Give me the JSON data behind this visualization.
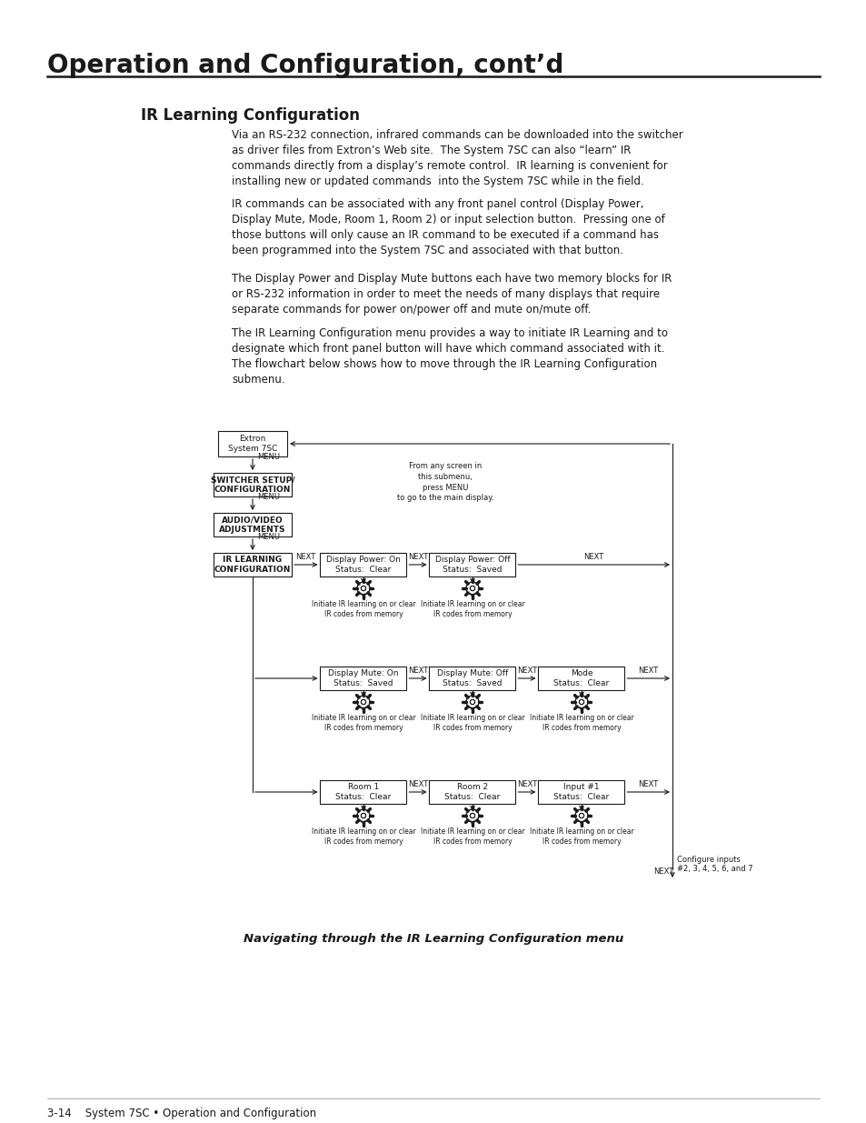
{
  "title": "Operation and Configuration, cont’d",
  "section_title": "IR Learning Configuration",
  "paragraph1": "Via an RS-232 connection, infrared commands can be downloaded into the switcher\nas driver files from Extron’s Web site.  The System 7SC can also “learn” IR\ncommands directly from a display’s remote control.  IR learning is convenient for\ninstalling new or updated commands  into the System 7SC while in the field.",
  "paragraph2": "IR commands can be associated with any front panel control (Display Power,\nDisplay Mute, Mode, Room 1, Room 2) or input selection button.  Pressing one of\nthose buttons will only cause an IR command to be executed if a command has\nbeen programmed into the System 7SC and associated with that button.",
  "paragraph3": "The Display Power and Display Mute buttons each have two memory blocks for IR\nor RS-232 information in order to meet the needs of many displays that require\nseparate commands for power on/power off and mute on/mute off.",
  "paragraph4": "The IR Learning Configuration menu provides a way to initiate IR Learning and to\ndesignate which front panel button will have which command associated with it.\nThe flowchart below shows how to move through the IR Learning Configuration\nsubmenu.",
  "footer_left": "3-14    System 7SC • Operation and Configuration",
  "caption": "Navigating through the IR Learning Configuration menu",
  "bg_color": "#ffffff",
  "text_color": "#1a1a1a"
}
